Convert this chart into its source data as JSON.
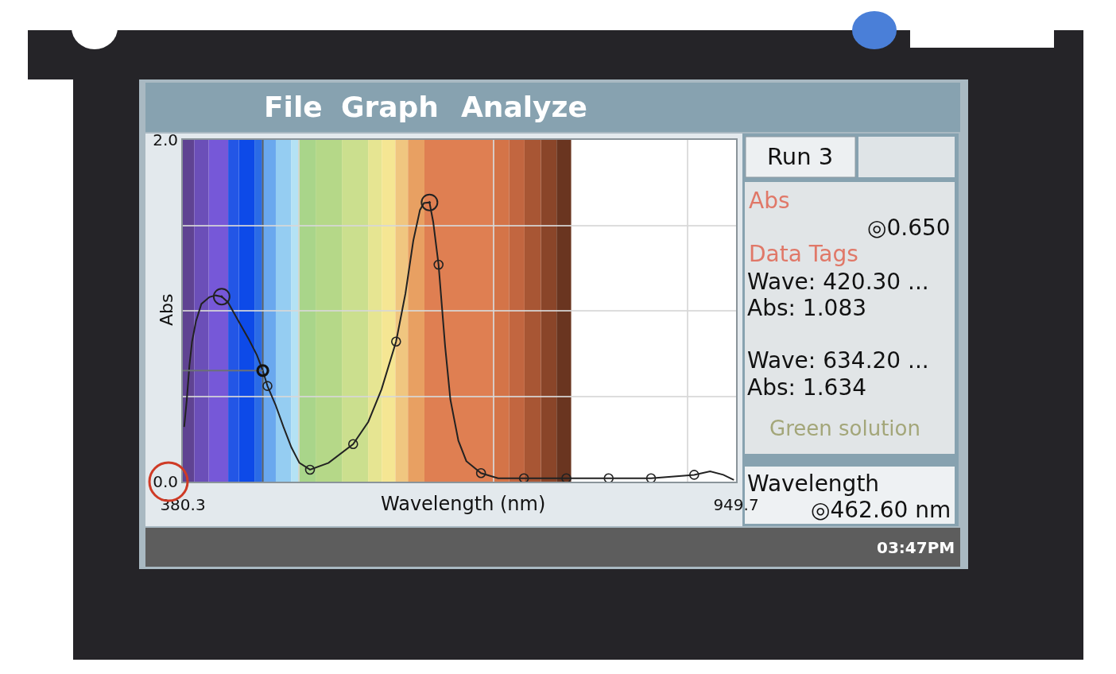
{
  "chart_data": {
    "type": "line",
    "xlabel": "Wavelength (nm)",
    "ylabel": "Abs",
    "xlim": [
      380.3,
      949.7
    ],
    "xticks": [
      {
        "value": 380.3,
        "label": "380.3"
      },
      {
        "value": 500,
        "label": null
      },
      {
        "value": 700,
        "label": null
      },
      {
        "value": 900,
        "label": null
      },
      {
        "value": 949.7,
        "label": "949.7"
      }
    ],
    "ylim": [
      0,
      2
    ],
    "yticks": [
      {
        "value": 0,
        "label": "0.0"
      },
      {
        "value": 0.5,
        "label": null
      },
      {
        "value": 1,
        "label": null
      },
      {
        "value": 1.5,
        "label": null
      },
      {
        "value": 2,
        "label": "2.0"
      }
    ],
    "grid": true,
    "series": [
      {
        "color": "#222222",
        "marker": "none",
        "x": [
          381.7,
          384.4,
          387.1,
          389.8,
          393.9,
          399.4,
          407.6,
          414.0,
          420.3,
          426.7,
          437.6,
          448.5,
          456.6,
          462.6,
          467.4,
          475.7,
          483.9,
          492.1,
          500.3,
          511.2,
          530.3,
          555.6,
          571.2,
          584.8,
          599.8,
          609.4,
          617.5,
          624.4,
          628.5,
          634.2,
          638.0,
          643.5,
          650.3,
          655.7,
          663.9,
          672.1,
          687.2,
          704.8,
          731.4,
          775.0,
          818.6,
          862.2,
          906.6,
          923.0,
          936.6,
          947.5
        ],
        "values": [
          0.32,
          0.48,
          0.68,
          0.82,
          0.94,
          1.04,
          1.08,
          1.09,
          1.083,
          1.05,
          0.94,
          0.83,
          0.74,
          0.65,
          0.56,
          0.45,
          0.32,
          0.2,
          0.11,
          0.07,
          0.11,
          0.22,
          0.35,
          0.54,
          0.82,
          1.1,
          1.41,
          1.59,
          1.63,
          1.634,
          1.52,
          1.27,
          0.79,
          0.48,
          0.24,
          0.12,
          0.05,
          0.02,
          0.02,
          0.02,
          0.02,
          0.02,
          0.04,
          0.06,
          0.04,
          0.01
        ]
      },
      {
        "type": "scatter",
        "color": "#222222",
        "marker": "circle",
        "x": [
          467.4,
          511.2,
          555.6,
          599.8,
          643.5,
          687.2,
          731.4,
          775.0,
          818.6,
          862.2,
          906.6
        ],
        "values": [
          0.56,
          0.07,
          0.22,
          0.82,
          1.27,
          0.05,
          0.02,
          0.02,
          0.02,
          0.02,
          0.04
        ]
      },
      {
        "type": "scatter",
        "color": "#222222",
        "marker": "circle",
        "x": [
          420.3,
          634.2
        ],
        "values": [
          1.083,
          1.634
        ]
      },
      {
        "color": "#6b7176",
        "marker": "none",
        "x": [
          380.3,
          462.6
        ],
        "values": [
          0.65,
          0.65
        ]
      },
      {
        "type": "scatter",
        "color": "#111111",
        "marker": "circle",
        "x": [
          462.6
        ],
        "values": [
          0.65
        ]
      }
    ],
    "ref_lines": [
      {
        "axis": "x",
        "value": 462.6,
        "color": "#5a6066"
      }
    ],
    "bands": [
      {
        "axis": "x",
        "from": 380.3,
        "to": 392,
        "color": "#5f4392"
      },
      {
        "axis": "x",
        "from": 392,
        "to": 407,
        "color": "#6b4fb8"
      },
      {
        "axis": "x",
        "from": 407,
        "to": 427,
        "color": "#7658d8"
      },
      {
        "axis": "x",
        "from": 427,
        "to": 438,
        "color": "#2356e6"
      },
      {
        "axis": "x",
        "from": 438,
        "to": 454,
        "color": "#0d4ae8"
      },
      {
        "axis": "x",
        "from": 454,
        "to": 462,
        "color": "#2a6be6"
      },
      {
        "axis": "x",
        "from": 462,
        "to": 476,
        "color": "#6aa8ee"
      },
      {
        "axis": "x",
        "from": 476,
        "to": 492,
        "color": "#95cdf2"
      },
      {
        "axis": "x",
        "from": 492,
        "to": 499,
        "color": "#b4e2f4"
      },
      {
        "axis": "x",
        "from": 499,
        "to": 517,
        "color": "#a9d58a"
      },
      {
        "axis": "x",
        "from": 517,
        "to": 544,
        "color": "#b5d888"
      },
      {
        "axis": "x",
        "from": 544,
        "to": 571,
        "color": "#cbdf8e"
      },
      {
        "axis": "x",
        "from": 571,
        "to": 585,
        "color": "#e6e592"
      },
      {
        "axis": "x",
        "from": 585,
        "to": 599,
        "color": "#f5e693"
      },
      {
        "axis": "x",
        "from": 599,
        "to": 612,
        "color": "#f0c680"
      },
      {
        "axis": "x",
        "from": 612,
        "to": 629,
        "color": "#e8a062"
      },
      {
        "axis": "x",
        "from": 629,
        "to": 700,
        "color": "#df7f52"
      },
      {
        "axis": "x",
        "from": 700,
        "to": 716,
        "color": "#d47448"
      },
      {
        "axis": "x",
        "from": 716,
        "to": 732,
        "color": "#c26640"
      },
      {
        "axis": "x",
        "from": 732,
        "to": 749,
        "color": "#a85634"
      },
      {
        "axis": "x",
        "from": 749,
        "to": 765,
        "color": "#8a4529"
      },
      {
        "axis": "x",
        "from": 765,
        "to": 780,
        "color": "#6a3520"
      }
    ],
    "annotations": [
      "File",
      "Graph",
      "Analyze",
      "Run 3",
      "Abs",
      "◎0.650",
      "Data Tags",
      "Wave: 420.30 ...",
      "Abs: 1.083",
      "Wave: 634.20 ...",
      "Abs: 1.634",
      "Green solution",
      "Wavelength",
      "◎462.60 nm",
      "03:47PM"
    ]
  }
}
